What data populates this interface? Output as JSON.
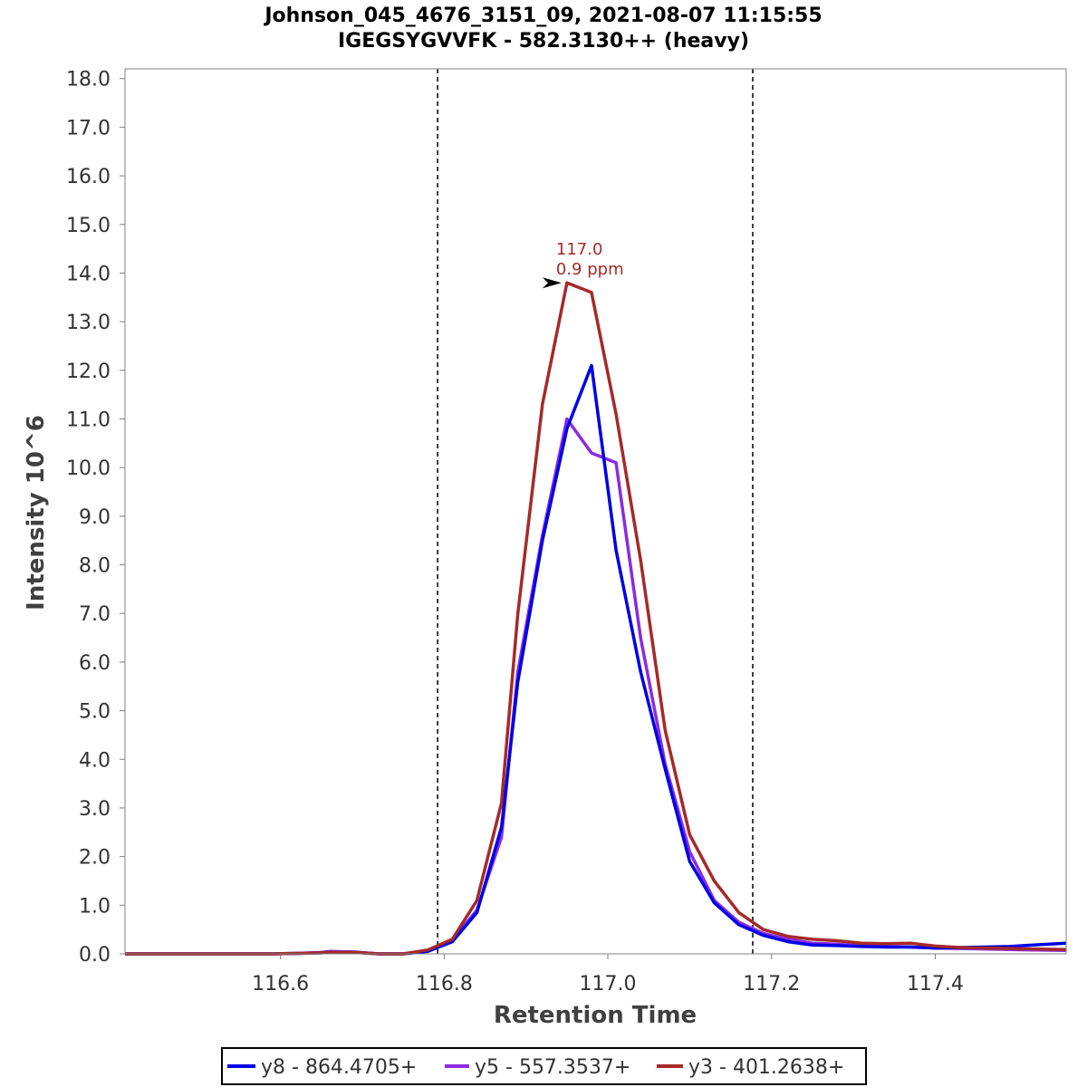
{
  "chart_data": {
    "type": "line",
    "title": "Johnson_045_4676_3151_09, 2021-08-07 11:15:55",
    "subtitle": "IGEGSYGVVFK - 582.3130++ (heavy)",
    "xlabel": "Retention Time",
    "ylabel": "Intensity 10^6",
    "xlim": [
      116.41,
      117.56
    ],
    "ylim": [
      0,
      18.2
    ],
    "x_ticks": [
      116.6,
      116.8,
      117.0,
      117.2,
      117.4
    ],
    "x_tick_labels": [
      "116.6",
      "116.8",
      "117.0",
      "117.2",
      "117.4"
    ],
    "y_ticks": [
      0,
      1,
      2,
      3,
      4,
      5,
      6,
      7,
      8,
      9,
      10,
      11,
      12,
      13,
      14,
      15,
      16,
      17,
      18
    ],
    "y_tick_labels": [
      "0.0",
      "1.0",
      "2.0",
      "3.0",
      "4.0",
      "5.0",
      "6.0",
      "7.0",
      "8.0",
      "9.0",
      "10.0",
      "11.0",
      "12.0",
      "13.0",
      "14.0",
      "15.0",
      "16.0",
      "17.0",
      "18.0"
    ],
    "grid": false,
    "boundaries": [
      116.792,
      117.177
    ],
    "legend_position": "bottom",
    "series": [
      {
        "name": "y8 - 864.4705+",
        "color": "#0000e6",
        "x": [
          116.41,
          116.44,
          116.47,
          116.5,
          116.53,
          116.56,
          116.59,
          116.62,
          116.65,
          116.66,
          116.69,
          116.72,
          116.75,
          116.78,
          116.81,
          116.84,
          116.87,
          116.89,
          116.92,
          116.95,
          116.98,
          117.01,
          117.04,
          117.07,
          117.1,
          117.13,
          117.16,
          117.19,
          117.22,
          117.25,
          117.28,
          117.31,
          117.34,
          117.37,
          117.4,
          117.43,
          117.46,
          117.49,
          117.52,
          117.56
        ],
        "y": [
          0.0,
          0.0,
          0.0,
          0.0,
          0.0,
          0.0,
          0.0,
          0.01,
          0.02,
          0.03,
          0.03,
          0.0,
          0.0,
          0.05,
          0.25,
          0.85,
          2.6,
          5.6,
          8.5,
          10.8,
          12.1,
          8.3,
          5.8,
          3.8,
          1.9,
          1.05,
          0.6,
          0.38,
          0.25,
          0.18,
          0.17,
          0.15,
          0.14,
          0.14,
          0.12,
          0.13,
          0.14,
          0.15,
          0.18,
          0.22
        ]
      },
      {
        "name": "y5 - 557.3537+",
        "color": "#8a2be2",
        "x": [
          116.41,
          116.44,
          116.47,
          116.5,
          116.53,
          116.56,
          116.59,
          116.62,
          116.65,
          116.66,
          116.69,
          116.72,
          116.75,
          116.78,
          116.81,
          116.84,
          116.87,
          116.89,
          116.92,
          116.95,
          116.98,
          117.01,
          117.04,
          117.07,
          117.1,
          117.13,
          117.16,
          117.19,
          117.22,
          117.25,
          117.28,
          117.31,
          117.34,
          117.37,
          117.4,
          117.43,
          117.46,
          117.49,
          117.52,
          117.56
        ],
        "y": [
          0.0,
          0.0,
          0.0,
          0.0,
          0.0,
          0.0,
          0.0,
          0.01,
          0.03,
          0.05,
          0.04,
          0.0,
          0.0,
          0.06,
          0.28,
          0.9,
          2.4,
          5.8,
          8.6,
          11.0,
          10.3,
          10.1,
          6.5,
          3.9,
          2.1,
          1.1,
          0.65,
          0.42,
          0.3,
          0.22,
          0.2,
          0.16,
          0.15,
          0.14,
          0.12,
          0.11,
          0.1,
          0.09,
          0.08,
          0.07
        ]
      },
      {
        "name": "y3 - 401.2638+",
        "color": "#a52a2a",
        "x": [
          116.41,
          116.44,
          116.47,
          116.5,
          116.53,
          116.56,
          116.59,
          116.62,
          116.65,
          116.66,
          116.69,
          116.72,
          116.75,
          116.78,
          116.81,
          116.84,
          116.87,
          116.89,
          116.92,
          116.95,
          116.98,
          117.01,
          117.04,
          117.07,
          117.1,
          117.13,
          117.16,
          117.19,
          117.22,
          117.25,
          117.28,
          117.31,
          117.34,
          117.37,
          117.4,
          117.43,
          117.46,
          117.49,
          117.52,
          117.56
        ],
        "y": [
          0.0,
          0.0,
          0.0,
          0.0,
          0.0,
          0.0,
          0.0,
          0.01,
          0.02,
          0.03,
          0.03,
          0.0,
          0.0,
          0.08,
          0.3,
          1.1,
          3.1,
          7.0,
          11.3,
          13.8,
          13.6,
          11.1,
          8.1,
          4.6,
          2.45,
          1.5,
          0.85,
          0.5,
          0.36,
          0.3,
          0.27,
          0.22,
          0.21,
          0.22,
          0.16,
          0.13,
          0.12,
          0.11,
          0.1,
          0.09
        ]
      }
    ],
    "annotation": {
      "x": 116.95,
      "y": 13.8,
      "lines": [
        "117.0",
        "0.9 ppm"
      ],
      "color": "#a52a2a"
    }
  }
}
